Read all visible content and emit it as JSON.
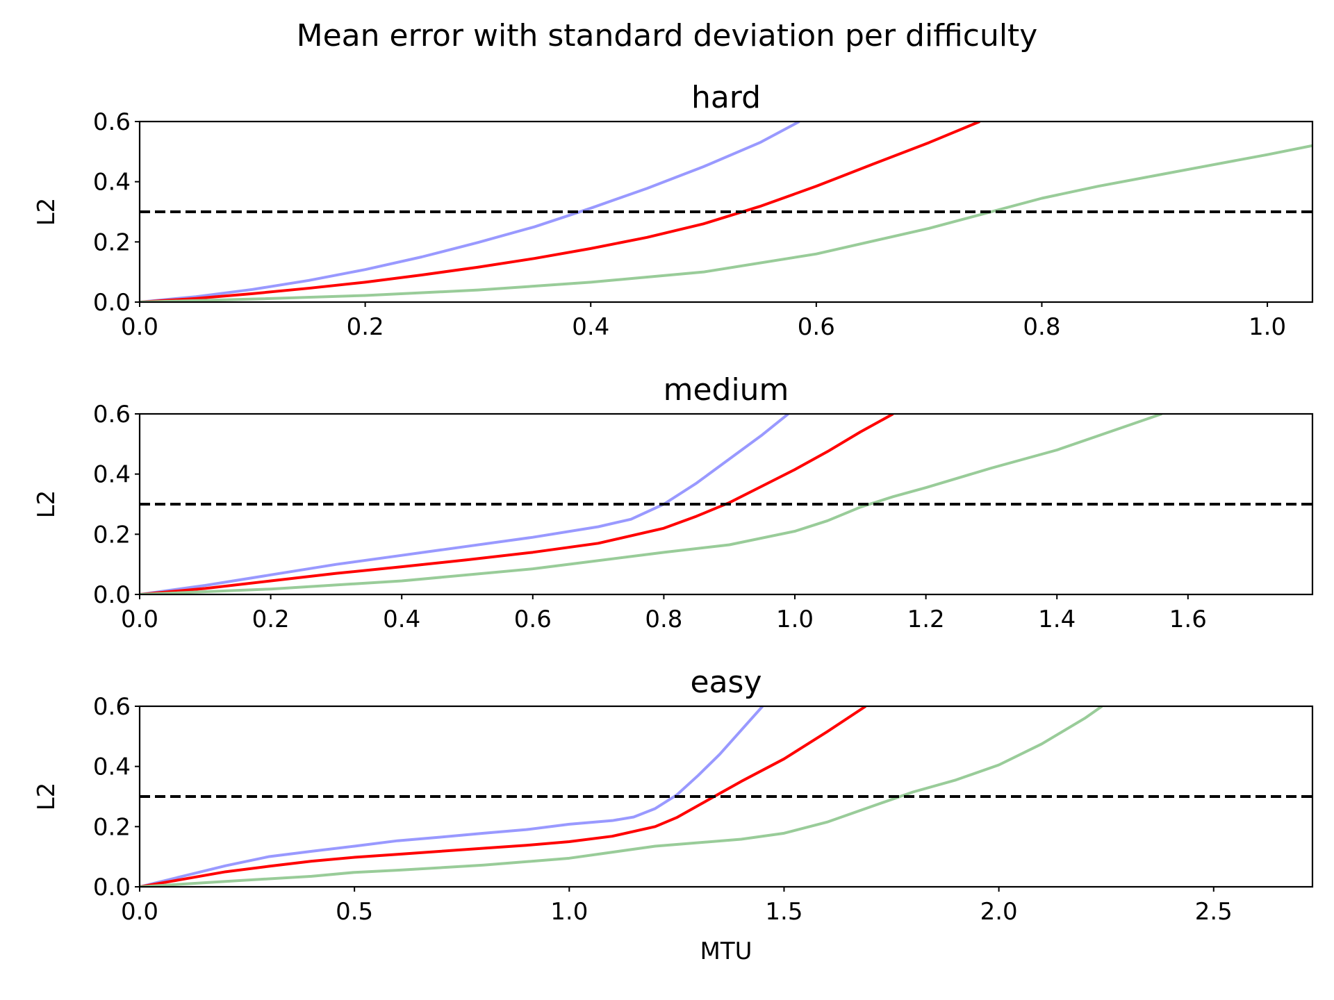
{
  "figure": {
    "title": "Mean error with standard deviation per difficulty"
  },
  "chart_data": [
    {
      "type": "line",
      "title": "hard",
      "xlabel": "",
      "ylabel": "L2",
      "xlim": [
        0.0,
        1.04
      ],
      "ylim": [
        0.0,
        0.6
      ],
      "xticks": [
        "0.0",
        "0.2",
        "0.4",
        "0.6",
        "0.8",
        "1.0"
      ],
      "yticks": [
        "0.0",
        "0.2",
        "0.4",
        "0.6"
      ],
      "threshold": 0.3,
      "series": [
        {
          "color": "#9999ff",
          "role": "lower-std",
          "x": [
            0,
            0.05,
            0.1,
            0.15,
            0.2,
            0.25,
            0.3,
            0.35,
            0.4,
            0.45,
            0.5,
            0.55,
            0.585
          ],
          "y": [
            0,
            0.018,
            0.042,
            0.072,
            0.108,
            0.15,
            0.198,
            0.25,
            0.312,
            0.378,
            0.45,
            0.53,
            0.6
          ]
        },
        {
          "color": "#ff0000",
          "role": "mean",
          "x": [
            0,
            0.05,
            0.1,
            0.15,
            0.2,
            0.25,
            0.3,
            0.35,
            0.4,
            0.45,
            0.5,
            0.55,
            0.6,
            0.65,
            0.7,
            0.745
          ],
          "y": [
            0,
            0.012,
            0.028,
            0.046,
            0.066,
            0.09,
            0.116,
            0.145,
            0.178,
            0.215,
            0.26,
            0.318,
            0.385,
            0.458,
            0.53,
            0.6
          ]
        },
        {
          "color": "#99cc99",
          "role": "upper-std",
          "x": [
            0,
            0.1,
            0.2,
            0.3,
            0.4,
            0.5,
            0.6,
            0.7,
            0.75,
            0.8,
            0.85,
            0.9,
            0.95,
            1.0,
            1.04
          ],
          "y": [
            0,
            0.01,
            0.022,
            0.04,
            0.066,
            0.1,
            0.16,
            0.245,
            0.295,
            0.345,
            0.385,
            0.42,
            0.455,
            0.49,
            0.52
          ]
        }
      ]
    },
    {
      "type": "line",
      "title": "medium",
      "xlabel": "",
      "ylabel": "L2",
      "xlim": [
        0.0,
        1.79
      ],
      "ylim": [
        0.0,
        0.6
      ],
      "xticks": [
        "0.0",
        "0.2",
        "0.4",
        "0.6",
        "0.8",
        "1.0",
        "1.2",
        "1.4",
        "1.6"
      ],
      "yticks": [
        "0.0",
        "0.2",
        "0.4",
        "0.6"
      ],
      "threshold": 0.3,
      "series": [
        {
          "color": "#9999ff",
          "role": "lower-std",
          "x": [
            0,
            0.1,
            0.2,
            0.3,
            0.4,
            0.5,
            0.6,
            0.7,
            0.75,
            0.8,
            0.85,
            0.9,
            0.95,
            0.99
          ],
          "y": [
            0,
            0.03,
            0.065,
            0.1,
            0.13,
            0.16,
            0.19,
            0.225,
            0.25,
            0.3,
            0.37,
            0.45,
            0.53,
            0.6
          ]
        },
        {
          "color": "#ff0000",
          "role": "mean",
          "x": [
            0,
            0.1,
            0.2,
            0.3,
            0.4,
            0.5,
            0.6,
            0.7,
            0.8,
            0.85,
            0.9,
            0.95,
            1.0,
            1.05,
            1.1,
            1.15
          ],
          "y": [
            0,
            0.02,
            0.045,
            0.07,
            0.092,
            0.115,
            0.14,
            0.17,
            0.22,
            0.26,
            0.305,
            0.36,
            0.415,
            0.475,
            0.54,
            0.6
          ]
        },
        {
          "color": "#99cc99",
          "role": "upper-std",
          "x": [
            0,
            0.2,
            0.4,
            0.6,
            0.8,
            0.9,
            1.0,
            1.05,
            1.1,
            1.15,
            1.2,
            1.3,
            1.4,
            1.5,
            1.56
          ],
          "y": [
            0,
            0.018,
            0.045,
            0.085,
            0.14,
            0.165,
            0.21,
            0.245,
            0.29,
            0.325,
            0.355,
            0.42,
            0.48,
            0.555,
            0.6
          ]
        }
      ]
    },
    {
      "type": "line",
      "title": "easy",
      "xlabel": "MTU",
      "ylabel": "L2",
      "xlim": [
        0.0,
        2.73
      ],
      "ylim": [
        0.0,
        0.6
      ],
      "xticks": [
        "0.0",
        "0.5",
        "1.0",
        "1.5",
        "2.0",
        "2.5"
      ],
      "yticks": [
        "0.0",
        "0.2",
        "0.4",
        "0.6"
      ],
      "threshold": 0.3,
      "series": [
        {
          "color": "#9999ff",
          "role": "lower-std",
          "x": [
            0,
            0.1,
            0.2,
            0.3,
            0.4,
            0.5,
            0.6,
            0.7,
            0.8,
            0.9,
            1.0,
            1.1,
            1.15,
            1.2,
            1.25,
            1.3,
            1.35,
            1.4,
            1.45
          ],
          "y": [
            0,
            0.035,
            0.07,
            0.1,
            0.118,
            0.135,
            0.153,
            0.165,
            0.178,
            0.19,
            0.208,
            0.22,
            0.232,
            0.26,
            0.305,
            0.37,
            0.44,
            0.52,
            0.6
          ]
        },
        {
          "color": "#ff0000",
          "role": "mean",
          "x": [
            0,
            0.1,
            0.2,
            0.3,
            0.4,
            0.5,
            0.6,
            0.7,
            0.8,
            0.9,
            1.0,
            1.1,
            1.2,
            1.25,
            1.3,
            1.35,
            1.4,
            1.5,
            1.6,
            1.69
          ],
          "y": [
            0,
            0.025,
            0.05,
            0.068,
            0.085,
            0.098,
            0.108,
            0.118,
            0.128,
            0.138,
            0.15,
            0.168,
            0.2,
            0.23,
            0.27,
            0.31,
            0.35,
            0.425,
            0.515,
            0.6
          ]
        },
        {
          "color": "#99cc99",
          "role": "upper-std",
          "x": [
            0,
            0.2,
            0.4,
            0.5,
            0.6,
            0.8,
            1.0,
            1.2,
            1.4,
            1.5,
            1.6,
            1.7,
            1.75,
            1.8,
            1.9,
            2.0,
            2.1,
            2.2,
            2.24
          ],
          "y": [
            0,
            0.018,
            0.035,
            0.048,
            0.055,
            0.072,
            0.095,
            0.135,
            0.158,
            0.178,
            0.215,
            0.265,
            0.29,
            0.315,
            0.355,
            0.405,
            0.475,
            0.56,
            0.6
          ]
        }
      ]
    }
  ]
}
